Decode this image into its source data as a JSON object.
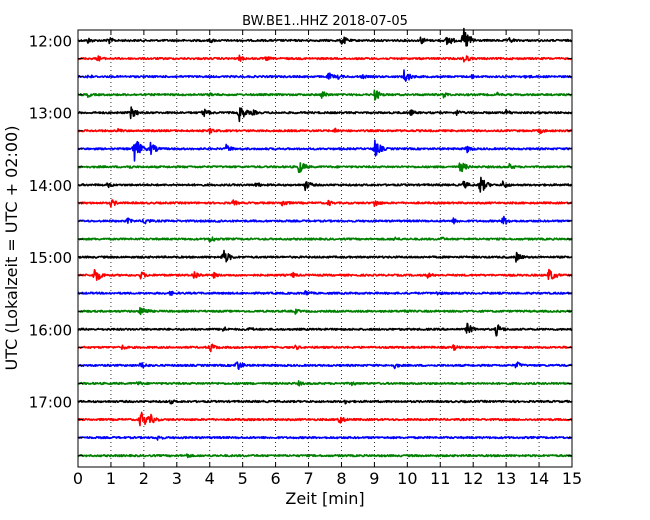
{
  "chart_data": {
    "type": "line",
    "title": "BW.BE1..HHZ 2018-07-05",
    "xlabel": "Zeit  [min]",
    "ylabel": "UTC (Lokalzeit = UTC + 02:00)",
    "xlim": [
      0,
      15
    ],
    "x_ticks": [
      "0",
      "1",
      "2",
      "3",
      "4",
      "5",
      "6",
      "7",
      "8",
      "9",
      "10",
      "11",
      "12",
      "13",
      "14",
      "15"
    ],
    "y_tick_labels": [
      "12:00",
      "13:00",
      "14:00",
      "15:00",
      "16:00",
      "17:00"
    ],
    "vertical_grid": "dotted",
    "trace_colors": [
      "#000000",
      "#ff0000",
      "#0000ff",
      "#008000"
    ],
    "traces": [
      {
        "start": "12:00",
        "events": [
          [
            0.3,
            0.3
          ],
          [
            0.9,
            0.4
          ],
          [
            4.0,
            0.25
          ],
          [
            8.0,
            0.5
          ],
          [
            10.4,
            0.4
          ],
          [
            11.2,
            0.6
          ],
          [
            11.7,
            1.3
          ],
          [
            13.1,
            0.3
          ]
        ]
      },
      {
        "start": "12:15",
        "events": [
          [
            0.6,
            0.3
          ],
          [
            4.9,
            0.3
          ],
          [
            5.7,
            0.25
          ],
          [
            11.7,
            0.5
          ]
        ]
      },
      {
        "start": "12:30",
        "events": [
          [
            0.3,
            0.25
          ],
          [
            7.6,
            0.4
          ],
          [
            7.9,
            0.25
          ],
          [
            8.6,
            0.25
          ],
          [
            9.9,
            0.7
          ],
          [
            11.9,
            0.3
          ],
          [
            13.6,
            0.25
          ]
        ]
      },
      {
        "start": "12:45",
        "events": [
          [
            0.3,
            0.25
          ],
          [
            4.0,
            0.25
          ],
          [
            7.4,
            0.4
          ],
          [
            9.0,
            0.6
          ],
          [
            11.1,
            0.3
          ],
          [
            12.7,
            0.25
          ]
        ]
      },
      {
        "start": "13:00",
        "events": [
          [
            1.6,
            0.6
          ],
          [
            3.8,
            0.5
          ],
          [
            4.9,
            0.8
          ],
          [
            5.3,
            0.3
          ],
          [
            10.1,
            0.3
          ],
          [
            11.5,
            0.3
          ],
          [
            13.0,
            0.3
          ]
        ]
      },
      {
        "start": "13:15",
        "events": [
          [
            1.2,
            0.25
          ],
          [
            4.0,
            0.3
          ],
          [
            7.8,
            0.3
          ],
          [
            14.0,
            0.3
          ]
        ]
      },
      {
        "start": "13:30",
        "events": [
          [
            1.7,
            1.3
          ],
          [
            2.2,
            0.6
          ],
          [
            4.5,
            0.4
          ],
          [
            9.0,
            0.9
          ],
          [
            11.8,
            0.4
          ]
        ]
      },
      {
        "start": "13:45",
        "events": [
          [
            1.5,
            0.25
          ],
          [
            6.7,
            0.7
          ],
          [
            11.6,
            0.6
          ],
          [
            13.1,
            0.3
          ]
        ]
      },
      {
        "start": "14:00",
        "events": [
          [
            0.9,
            0.3
          ],
          [
            5.4,
            0.3
          ],
          [
            6.9,
            0.5
          ],
          [
            11.7,
            0.4
          ],
          [
            12.2,
            0.9
          ],
          [
            12.9,
            0.4
          ]
        ]
      },
      {
        "start": "14:15",
        "events": [
          [
            1.0,
            0.4
          ],
          [
            4.7,
            0.3
          ],
          [
            6.2,
            0.4
          ],
          [
            7.6,
            0.3
          ],
          [
            9.0,
            0.4
          ]
        ]
      },
      {
        "start": "14:30",
        "events": [
          [
            1.5,
            0.3
          ],
          [
            2.0,
            0.4
          ],
          [
            4.2,
            0.25
          ],
          [
            11.4,
            0.3
          ],
          [
            12.9,
            0.5
          ]
        ]
      },
      {
        "start": "14:45",
        "events": [
          [
            4.0,
            0.4
          ],
          [
            9.6,
            0.25
          ],
          [
            11.0,
            0.25
          ]
        ]
      },
      {
        "start": "15:00",
        "events": [
          [
            4.4,
            0.8
          ],
          [
            13.3,
            0.5
          ]
        ]
      },
      {
        "start": "15:15",
        "events": [
          [
            0.5,
            0.8
          ],
          [
            1.9,
            0.4
          ],
          [
            3.5,
            0.5
          ],
          [
            4.1,
            0.3
          ],
          [
            6.5,
            0.3
          ],
          [
            10.6,
            0.3
          ],
          [
            14.3,
            0.7
          ]
        ]
      },
      {
        "start": "15:30",
        "events": [
          [
            2.8,
            0.25
          ],
          [
            6.9,
            0.3
          ],
          [
            10.9,
            0.25
          ]
        ]
      },
      {
        "start": "15:45",
        "events": [
          [
            1.9,
            0.6
          ],
          [
            6.6,
            0.25
          ],
          [
            9.9,
            0.25
          ]
        ]
      },
      {
        "start": "16:00",
        "events": [
          [
            4.4,
            0.3
          ],
          [
            5.2,
            0.25
          ],
          [
            11.8,
            0.6
          ],
          [
            12.7,
            0.6
          ]
        ]
      },
      {
        "start": "16:15",
        "events": [
          [
            1.3,
            0.3
          ],
          [
            4.0,
            0.5
          ],
          [
            6.6,
            0.25
          ],
          [
            11.4,
            0.3
          ]
        ]
      },
      {
        "start": "16:30",
        "events": [
          [
            1.9,
            0.4
          ],
          [
            4.8,
            0.6
          ],
          [
            9.6,
            0.3
          ],
          [
            13.3,
            0.4
          ]
        ]
      },
      {
        "start": "16:45",
        "events": [
          [
            1.8,
            0.25
          ],
          [
            6.7,
            0.25
          ],
          [
            8.3,
            0.25
          ]
        ]
      },
      {
        "start": "17:00",
        "events": [
          [
            2.8,
            0.25
          ],
          [
            8.1,
            0.25
          ]
        ]
      },
      {
        "start": "17:15",
        "events": [
          [
            1.9,
            1.0
          ],
          [
            2.2,
            0.5
          ],
          [
            7.9,
            0.5
          ]
        ]
      },
      {
        "start": "17:30",
        "events": [
          [
            2.4,
            0.3
          ]
        ]
      },
      {
        "start": "17:45",
        "events": [
          [
            3.3,
            0.25
          ]
        ]
      }
    ]
  }
}
